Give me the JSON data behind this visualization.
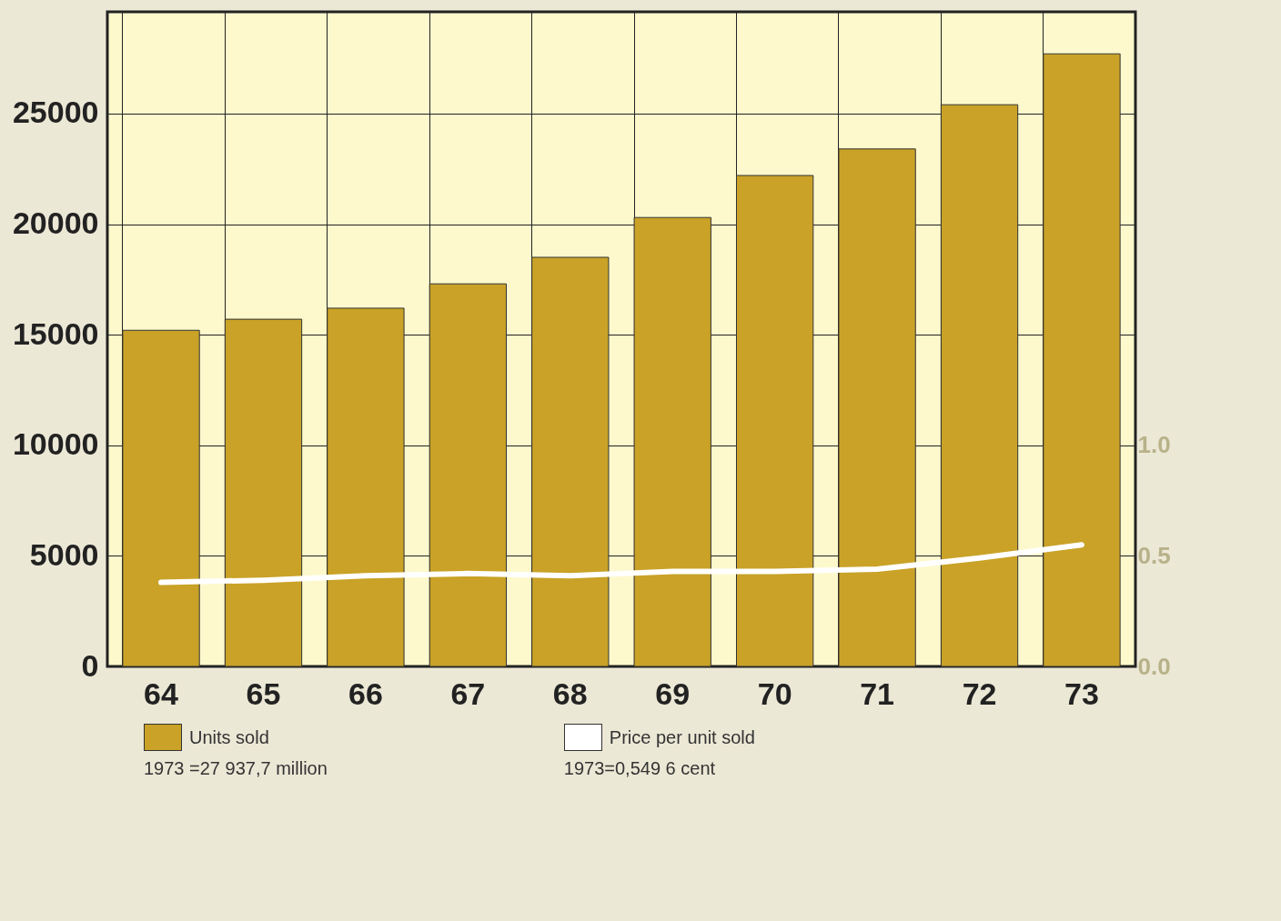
{
  "chart_data": {
    "type": "bar",
    "categories": [
      "64",
      "65",
      "66",
      "67",
      "68",
      "69",
      "70",
      "71",
      "72",
      "73"
    ],
    "series": [
      {
        "name": "Units sold",
        "color": "#c9a227",
        "values": [
          15200,
          15700,
          16200,
          17300,
          18500,
          20300,
          22200,
          23400,
          25400,
          27700
        ]
      },
      {
        "name": "Price per unit sold",
        "type": "line",
        "axis": "y2",
        "color": "#ffffff",
        "values": [
          0.38,
          0.39,
          0.41,
          0.42,
          0.41,
          0.43,
          0.43,
          0.44,
          0.49,
          0.55
        ]
      }
    ],
    "ylim": [
      0,
      29600
    ],
    "yticks": [
      0,
      5000,
      10000,
      15000,
      20000,
      25000
    ],
    "y2lim": [
      0,
      2.96
    ],
    "y2ticks": [
      {
        "value": 0,
        "label": "0.0"
      },
      {
        "value": 0.5,
        "label": "0.5"
      },
      {
        "value": 1,
        "label": "1.0"
      }
    ],
    "grid": true,
    "legend": "bottom",
    "annotations": [
      "1973 =27 937,7 million",
      "1973=0,549 6 cent"
    ]
  }
}
